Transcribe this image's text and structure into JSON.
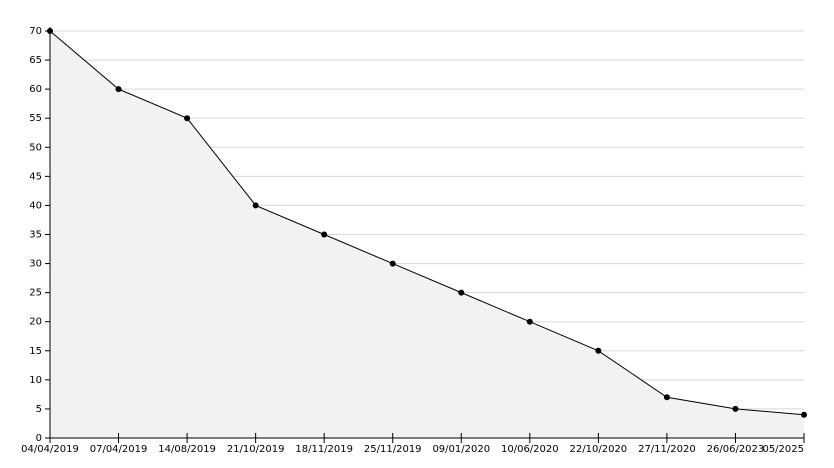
{
  "chart_data": {
    "type": "area",
    "categories": [
      "04/04/2019",
      "07/04/2019",
      "14/08/2019",
      "21/10/2019",
      "18/11/2019",
      "25/11/2019",
      "09/01/2020",
      "10/06/2020",
      "22/10/2020",
      "27/11/2020",
      "26/06/2023",
      "05/2025"
    ],
    "values": [
      70,
      60,
      55,
      40,
      35,
      30,
      25,
      20,
      15,
      7,
      5,
      4
    ],
    "color": "#000000",
    "fill": "#f2f2f2",
    "ylim": [
      0,
      70
    ],
    "yticks": [
      0,
      5,
      10,
      15,
      20,
      25,
      30,
      35,
      40,
      45,
      50,
      55,
      60,
      65,
      70
    ],
    "grid": true
  }
}
